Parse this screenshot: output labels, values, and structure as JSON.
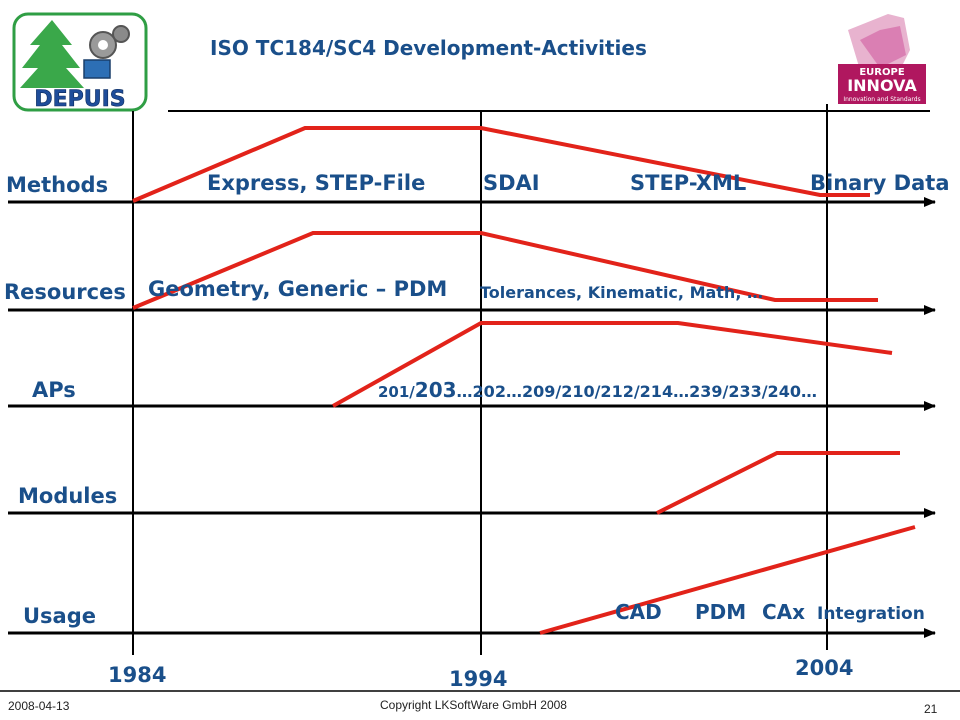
{
  "title": "ISO TC184/SC4 Development-Activities",
  "logos": {
    "left": {
      "text": "DEPUIS",
      "icon": "tree-and-gears-logo"
    },
    "right": {
      "line1": "EUROPE",
      "line2": "INNOVA",
      "line3": "Innovation and Standards",
      "icon": "europe-innova-logo"
    }
  },
  "rows": [
    {
      "label": "Methods",
      "annotations": [
        "Express, STEP-File",
        "SDAI",
        "STEP-XML",
        "Binary Data"
      ]
    },
    {
      "label": "Resources",
      "annotations": [
        "Geometry, Generic – PDM",
        "Tolerances, Kinematic, Math, …"
      ]
    },
    {
      "label": "APs",
      "annotations": [
        "201/",
        "203",
        "…202…209/210/212/214…239/233/240…"
      ]
    },
    {
      "label": "Modules",
      "annotations": []
    },
    {
      "label": "Usage",
      "annotations": [
        "CAD",
        "PDM",
        "CAx",
        "Integration"
      ]
    }
  ],
  "years": [
    "1984",
    "1994",
    "2004"
  ],
  "footer": {
    "date": "2008-04-13",
    "copyright": "Copyright LKSoftWare GmbH 2008",
    "page": "21"
  },
  "colors": {
    "text": "#1a4f8a",
    "activity_line": "#e2231a",
    "axis": "#000000"
  }
}
